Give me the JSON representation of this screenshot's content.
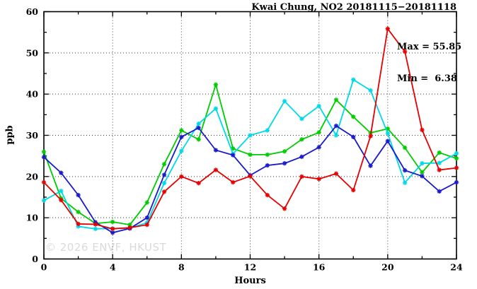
{
  "header": {
    "title": "Kwai Chung, NO2 20181115−20181118"
  },
  "annotations": {
    "max_label": "Max = 55.85",
    "min_label": "Min =  6.38",
    "watermark": "© 2026 ENVF, HKUST"
  },
  "axes": {
    "y_title": "ppb",
    "x_title": "Hours"
  },
  "chart_data": {
    "type": "line",
    "title": "Kwai Chung, NO2 20181115−20181118",
    "xlabel": "Hours",
    "ylabel": "ppb",
    "xlim": [
      0,
      24
    ],
    "ylim": [
      0,
      60
    ],
    "xticks": [
      0,
      4,
      8,
      12,
      16,
      20,
      24
    ],
    "xticks_minor": [
      2,
      6,
      10,
      14,
      18,
      22
    ],
    "yticks": [
      0,
      10,
      20,
      30,
      40,
      50,
      60
    ],
    "yticks_minor": [
      5,
      15,
      25,
      35,
      45,
      55
    ],
    "grid": "dotted at major ticks, mirrored inward ticks on all four sides",
    "legend_position": "none (only Max/Min annotation top-right)",
    "stat_max": 55.85,
    "stat_min": 6.38,
    "x": [
      0,
      1,
      2,
      3,
      4,
      5,
      6,
      7,
      8,
      9,
      10,
      11,
      12,
      13,
      14,
      15,
      16,
      17,
      18,
      19,
      20,
      21,
      22,
      23,
      24
    ],
    "series": [
      {
        "name": "green",
        "color": "#00cc00",
        "values": [
          26.0,
          14.7,
          11.4,
          8.6,
          9.0,
          8.3,
          13.7,
          23.0,
          31.2,
          29.0,
          42.3,
          26.8,
          25.3,
          25.3,
          26.1,
          29.0,
          30.7,
          38.6,
          34.5,
          30.6,
          31.6,
          27.0,
          21.0,
          25.8,
          24.4
        ]
      },
      {
        "name": "cyan",
        "color": "#00d9e6",
        "values": [
          14.2,
          16.5,
          7.9,
          7.3,
          7.4,
          7.5,
          8.8,
          18.4,
          26.2,
          32.8,
          36.5,
          25.5,
          30.0,
          31.2,
          38.3,
          34.0,
          37.1,
          30.0,
          43.5,
          40.9,
          30.5,
          18.5,
          23.2,
          23.3,
          25.6
        ]
      },
      {
        "name": "blue",
        "color": "#1a1acc",
        "values": [
          24.7,
          20.9,
          15.5,
          8.9,
          6.38,
          7.4,
          10.0,
          20.4,
          29.6,
          31.8,
          26.4,
          25.2,
          20.3,
          22.7,
          23.2,
          24.8,
          27.1,
          32.3,
          29.6,
          22.6,
          28.6,
          21.5,
          20.1,
          16.4,
          18.6
        ]
      },
      {
        "name": "red",
        "color": "#e60000",
        "values": [
          18.6,
          14.3,
          8.5,
          8.4,
          7.3,
          7.6,
          8.3,
          16.3,
          20.0,
          18.4,
          21.6,
          18.6,
          20.1,
          15.5,
          12.2,
          20.0,
          19.4,
          20.7,
          16.7,
          29.8,
          55.85,
          50.3,
          31.3,
          21.6,
          22.1
        ]
      }
    ]
  }
}
